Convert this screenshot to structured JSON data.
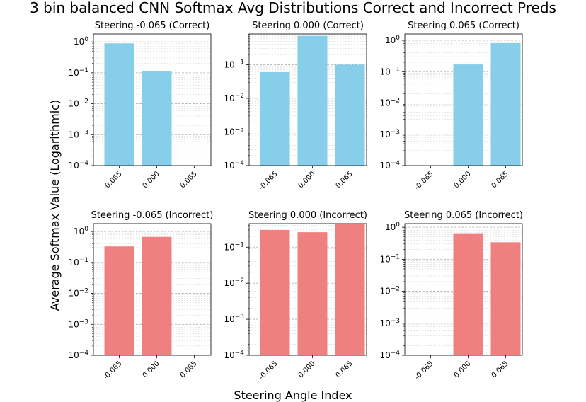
{
  "figure": {
    "title": "3 bin balanced CNN Softmax Avg Distributions Correct and Incorrect Preds",
    "xlabel": "Steering Angle Index",
    "ylabel": "Average Softmax Value (Logarithmic)"
  },
  "chart_data": [
    {
      "type": "bar",
      "title": "Steering -0.065 (Correct)",
      "categories": [
        "-0.065",
        "0.000",
        "0.065"
      ],
      "values": [
        0.89,
        0.11,
        0.0
      ],
      "yscale": "log",
      "ylim": [
        0.0001,
        1.8
      ],
      "color": "#87ceeb"
    },
    {
      "type": "bar",
      "title": "Steering 0.000 (Correct)",
      "categories": [
        "-0.065",
        "0.000",
        "0.065"
      ],
      "values": [
        0.06,
        0.72,
        0.1
      ],
      "yscale": "log",
      "ylim": [
        0.0001,
        0.82
      ],
      "color": "#87ceeb"
    },
    {
      "type": "bar",
      "title": "Steering 0.065 (Correct)",
      "categories": [
        "-0.065",
        "0.000",
        "0.065"
      ],
      "values": [
        0.0,
        0.17,
        0.82
      ],
      "yscale": "log",
      "ylim": [
        0.0001,
        1.6
      ],
      "color": "#87ceeb"
    },
    {
      "type": "bar",
      "title": "Steering -0.065 (Incorrect)",
      "categories": [
        "-0.065",
        "0.000",
        "0.065"
      ],
      "values": [
        0.33,
        0.67,
        0.0
      ],
      "yscale": "log",
      "ylim": [
        0.0001,
        1.8
      ],
      "color": "#f08080"
    },
    {
      "type": "bar",
      "title": "Steering 0.000 (Incorrect)",
      "categories": [
        "-0.065",
        "0.000",
        "0.065"
      ],
      "values": [
        0.3,
        0.26,
        0.44
      ],
      "yscale": "log",
      "ylim": [
        0.0001,
        0.45
      ],
      "color": "#f08080"
    },
    {
      "type": "bar",
      "title": "Steering 0.065 (Incorrect)",
      "categories": [
        "-0.065",
        "0.000",
        "0.065"
      ],
      "values": [
        0.0,
        0.65,
        0.34
      ],
      "yscale": "log",
      "ylim": [
        0.0001,
        1.3
      ],
      "color": "#f08080"
    }
  ]
}
